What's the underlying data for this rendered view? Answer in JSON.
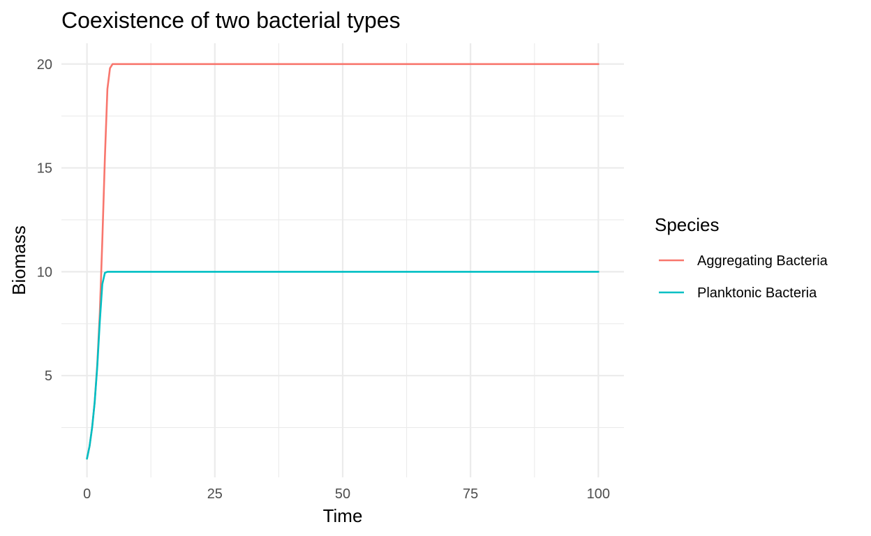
{
  "chart_data": {
    "type": "line",
    "title": "Coexistence of two bacterial types",
    "xlabel": "Time",
    "ylabel": "Biomass",
    "xlim": [
      -5,
      105
    ],
    "ylim": [
      0.1,
      21
    ],
    "x_ticks": [
      0,
      25,
      50,
      75,
      100
    ],
    "x_tick_labels": [
      "0",
      "25",
      "50",
      "75",
      "100"
    ],
    "y_ticks": [
      5,
      10,
      15,
      20
    ],
    "y_tick_labels": [
      "5",
      "10",
      "15",
      "20"
    ],
    "grid": true,
    "legend": {
      "title": "Species",
      "position": "right"
    },
    "x": [
      0,
      0.5,
      1,
      1.5,
      2,
      2.5,
      3,
      3.5,
      4,
      4.5,
      5,
      6,
      10,
      20,
      30,
      40,
      50,
      60,
      70,
      80,
      90,
      100
    ],
    "series": [
      {
        "name": "Aggregating Bacteria",
        "color": "#F8766D",
        "values": [
          1.0,
          1.6,
          2.5,
          3.7,
          5.5,
          8.0,
          11.5,
          15.5,
          18.8,
          19.8,
          20.0,
          20.0,
          20.0,
          20.0,
          20.0,
          20.0,
          20.0,
          20.0,
          20.0,
          20.0,
          20.0,
          20.0
        ]
      },
      {
        "name": "Planktonic Bacteria",
        "color": "#00BFC4",
        "values": [
          1.0,
          1.6,
          2.5,
          3.7,
          5.4,
          7.6,
          9.4,
          9.95,
          10.0,
          10.0,
          10.0,
          10.0,
          10.0,
          10.0,
          10.0,
          10.0,
          10.0,
          10.0,
          10.0,
          10.0,
          10.0,
          10.0
        ]
      }
    ]
  }
}
